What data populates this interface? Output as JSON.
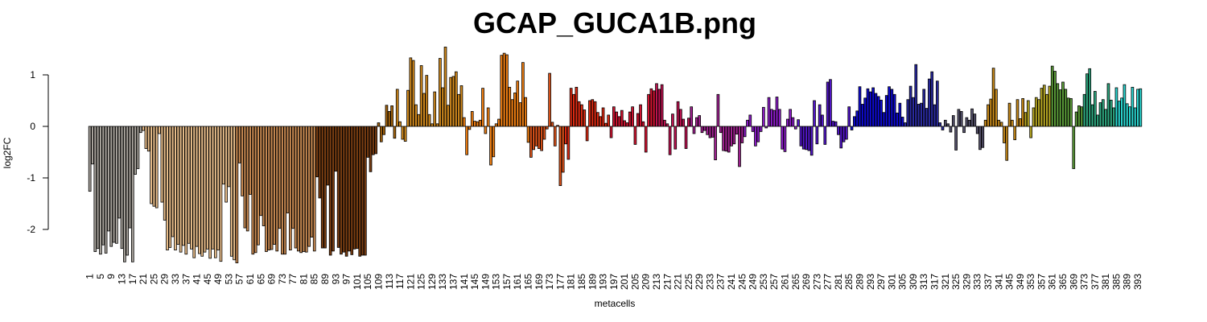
{
  "chart_data": {
    "type": "bar",
    "title": "GCAP_GUCA1B.png",
    "xlabel": "metacells",
    "ylabel": "log2FC",
    "ylim": [
      -2.7,
      1.6
    ],
    "yticks": [
      1,
      0,
      -1,
      -2
    ],
    "xtick_labels": [
      "1",
      "5",
      "9",
      "13",
      "17",
      "21",
      "25",
      "29",
      "33",
      "37",
      "41",
      "45",
      "49",
      "53",
      "57",
      "61",
      "65",
      "69",
      "73",
      "77",
      "81",
      "85",
      "89",
      "93",
      "97",
      "101",
      "105",
      "109",
      "113",
      "117",
      "121",
      "125",
      "129",
      "133",
      "137",
      "141",
      "145",
      "149",
      "153",
      "157",
      "161",
      "165",
      "169",
      "173",
      "177",
      "181",
      "185",
      "189",
      "193",
      "197",
      "201",
      "205",
      "209",
      "213",
      "217",
      "221",
      "225",
      "229",
      "233",
      "237",
      "241",
      "245",
      "249",
      "253",
      "257",
      "261",
      "265",
      "269",
      "273",
      "277",
      "281",
      "285",
      "289",
      "293",
      "297",
      "301",
      "305",
      "309",
      "313",
      "317",
      "321",
      "325",
      "329",
      "333",
      "337",
      "341",
      "345",
      "349",
      "353",
      "357",
      "361",
      "365",
      "369",
      "373",
      "377",
      "381",
      "385",
      "389",
      "393"
    ],
    "xtick_step": 4,
    "grid": false,
    "legend": "none",
    "groups": [
      {
        "start": 1,
        "end": 20,
        "color": "#a8a39c"
      },
      {
        "start": 21,
        "end": 55,
        "color": "#e8bd8a"
      },
      {
        "start": 56,
        "end": 85,
        "color": "#c88a52"
      },
      {
        "start": 86,
        "end": 108,
        "color": "#7a3e12"
      },
      {
        "start": 109,
        "end": 115,
        "color": "#a4640e"
      },
      {
        "start": 116,
        "end": 140,
        "color": "#d38b1e"
      },
      {
        "start": 141,
        "end": 165,
        "color": "#f07f12"
      },
      {
        "start": 166,
        "end": 178,
        "color": "#e0541a"
      },
      {
        "start": 179,
        "end": 195,
        "color": "#dd2a12"
      },
      {
        "start": 196,
        "end": 212,
        "color": "#d41432"
      },
      {
        "start": 213,
        "end": 225,
        "color": "#be1250"
      },
      {
        "start": 226,
        "end": 245,
        "color": "#a02090"
      },
      {
        "start": 246,
        "end": 265,
        "color": "#8c1cc8"
      },
      {
        "start": 266,
        "end": 285,
        "color": "#5216c8"
      },
      {
        "start": 286,
        "end": 305,
        "color": "#0e0ad2"
      },
      {
        "start": 306,
        "end": 320,
        "color": "#2a2aa0"
      },
      {
        "start": 321,
        "end": 335,
        "color": "#54506a"
      },
      {
        "start": 336,
        "end": 350,
        "color": "#c88a1a"
      },
      {
        "start": 351,
        "end": 360,
        "color": "#b8a822"
      },
      {
        "start": 361,
        "end": 372,
        "color": "#5a9a38"
      },
      {
        "start": 373,
        "end": 384,
        "color": "#2ea880"
      },
      {
        "start": 385,
        "end": 396,
        "color": "#2ad6d0"
      }
    ],
    "values": [
      -1.26,
      -0.73,
      -2.43,
      -2.37,
      -2.48,
      -2.3,
      -2.46,
      -2.03,
      -2.33,
      -2.25,
      -2.27,
      -1.78,
      -2.37,
      -2.63,
      -2.5,
      -1.97,
      -2.63,
      -0.93,
      -0.82,
      -0.12,
      -0.08,
      -0.43,
      -0.48,
      -1.5,
      -1.55,
      -1.58,
      -0.14,
      -1.47,
      -1.82,
      -2.4,
      -2.35,
      -2.14,
      -2.4,
      -2.29,
      -2.44,
      -2.31,
      -2.48,
      -2.27,
      -2.38,
      -2.55,
      -2.33,
      -2.47,
      -2.52,
      -2.44,
      -2.38,
      -2.56,
      -2.38,
      -2.55,
      -2.4,
      -2.62,
      -1.12,
      -1.47,
      -1.17,
      -2.52,
      -2.59,
      -2.65,
      -0.71,
      -1.35,
      -1.97,
      -2.03,
      -1.32,
      -2.48,
      -2.45,
      -2.3,
      -1.73,
      -1.93,
      -2.43,
      -2.4,
      -2.39,
      -2.29,
      -2.42,
      -1.98,
      -2.48,
      -2.48,
      -1.68,
      -2.4,
      -1.98,
      -2.36,
      -2.42,
      -2.45,
      -2.43,
      -2.44,
      -2.33,
      -2.15,
      -2.42,
      -0.98,
      -1.39,
      -2.36,
      -2.36,
      -1.14,
      -2.5,
      -2.42,
      -0.87,
      -2.35,
      -2.48,
      -2.44,
      -2.52,
      -2.42,
      -2.49,
      -2.38,
      -2.37,
      -2.52,
      -2.5,
      -2.5,
      -0.6,
      -0.88,
      -0.55,
      -0.53,
      0.07,
      -0.3,
      -0.16,
      0.41,
      0.29,
      0.4,
      -0.23,
      0.72,
      0.09,
      -0.25,
      -0.29,
      0.7,
      1.33,
      1.28,
      0.42,
      0.23,
      1.18,
      0.64,
      0.99,
      0.23,
      0.05,
      0.67,
      0.05,
      1.32,
      0.75,
      1.54,
      0.41,
      0.95,
      0.97,
      1.06,
      0.62,
      0.79,
      0.17,
      -0.55,
      -0.06,
      0.29,
      0.1,
      0.09,
      0.12,
      0.74,
      -0.14,
      0.36,
      -0.75,
      -0.59,
      0.05,
      0.14,
      1.38,
      1.42,
      1.39,
      0.76,
      0.52,
      0.65,
      0.88,
      0.46,
      1.24,
      0.56,
      -0.31,
      -0.6,
      -0.45,
      -0.38,
      -0.43,
      -0.47,
      -0.25,
      -0.05,
      1.03,
      0.08,
      -0.38,
      0.02,
      -1.15,
      -0.89,
      -0.34,
      -0.64,
      0.74,
      0.62,
      0.76,
      0.48,
      0.42,
      0.32,
      -0.28,
      0.5,
      0.52,
      0.48,
      0.27,
      0.19,
      0.36,
      0.06,
      0.22,
      -0.22,
      0.38,
      0.28,
      0.19,
      0.31,
      0.11,
      0.07,
      0.28,
      0.38,
      -0.35,
      0.25,
      0.42,
      0.09,
      -0.5,
      0.62,
      0.73,
      0.69,
      0.83,
      0.72,
      0.81,
      0.12,
      0.05,
      -0.55,
      0.24,
      -0.44,
      0.48,
      0.33,
      0.14,
      -0.43,
      0.16,
      0.38,
      -0.14,
      0.17,
      0.21,
      -0.12,
      -0.08,
      -0.16,
      -0.22,
      -0.21,
      -0.65,
      0.62,
      -0.12,
      -0.47,
      -0.48,
      -0.5,
      -0.38,
      -0.34,
      -0.15,
      -0.78,
      -0.32,
      -0.2,
      0.12,
      0.22,
      -0.1,
      -0.38,
      -0.3,
      -0.1,
      0.37,
      -0.03,
      0.56,
      0.33,
      0.31,
      0.57,
      0.33,
      -0.44,
      -0.49,
      0.14,
      0.33,
      0.17,
      -0.05,
      0.13,
      -0.38,
      -0.44,
      -0.45,
      -0.47,
      -0.56,
      0.5,
      -0.34,
      0.42,
      0.22,
      -0.35,
      0.86,
      0.91,
      0.1,
      0.09,
      -0.16,
      -0.42,
      -0.3,
      -0.25,
      0.38,
      -0.07,
      0.19,
      0.3,
      0.77,
      0.43,
      0.55,
      0.73,
      0.67,
      0.75,
      0.64,
      0.58,
      0.51,
      0.27,
      0.6,
      0.77,
      0.72,
      0.62,
      0.26,
      0.45,
      0.18,
      0.07,
      0.52,
      0.78,
      0.56,
      1.2,
      0.43,
      0.45,
      0.72,
      0.35,
      0.92,
      1.06,
      0.42,
      0.88,
      0.07,
      -0.07,
      0.12,
      0.05,
      -0.11,
      0.21,
      -0.46,
      0.33,
      0.29,
      -0.12,
      0.17,
      0.12,
      0.34,
      0.24,
      -0.14,
      -0.45,
      -0.41,
      0.12,
      0.42,
      0.53,
      1.13,
      0.72,
      0.12,
      0.08,
      -0.32,
      -0.66,
      0.45,
      0.12,
      -0.26,
      0.52,
      0.15,
      0.54,
      0.27,
      0.5,
      -0.22,
      0.36,
      0.56,
      0.52,
      0.74,
      0.8,
      0.62,
      0.78,
      1.17,
      1.07,
      0.83,
      0.71,
      0.86,
      0.72,
      0.55,
      0.54,
      -0.82,
      0.28,
      0.4,
      0.38,
      0.62,
      1.02,
      1.12,
      0.42,
      0.68,
      0.22,
      0.46,
      0.52,
      0.33,
      0.83,
      0.51,
      0.36,
      0.75,
      0.49,
      0.55,
      0.81,
      0.44,
      0.38,
      0.76,
      0.36,
      0.72,
      0.73
    ]
  }
}
